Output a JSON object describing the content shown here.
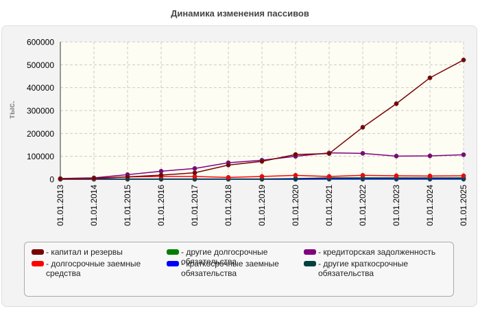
{
  "chart_data": {
    "type": "line",
    "title": "Динамика изменения пассивов",
    "ylabel": "тыс.",
    "xlabel": "",
    "ylim": [
      0,
      600000
    ],
    "yticks": [
      0,
      100000,
      200000,
      300000,
      400000,
      500000,
      600000
    ],
    "grid": true,
    "legend_position": "bottom",
    "categories": [
      "01.01.2013",
      "01.01.2014",
      "01.01.2015",
      "01.01.2016",
      "01.01.2017",
      "01.01.2018",
      "01.01.2019",
      "01.01.2020",
      "01.01.2021",
      "01.01.2022",
      "01.01.2023",
      "01.01.2024",
      "01.01.2025"
    ],
    "series": [
      {
        "name": "капитал и резервы",
        "color": "#7a0000",
        "values": [
          2000,
          4000,
          10000,
          18000,
          28000,
          62000,
          78000,
          108000,
          112000,
          227000,
          330000,
          443000,
          521000
        ]
      },
      {
        "name": "долгосрочные заемные средства",
        "color": "#ff0000",
        "values": [
          1000,
          3000,
          10000,
          12000,
          12000,
          8000,
          12000,
          17000,
          12000,
          17000,
          15000,
          14000,
          15000
        ]
      },
      {
        "name": "другие долгосрочные обязательства",
        "color": "#008000",
        "values": [
          0,
          0,
          0,
          0,
          0,
          0,
          0,
          0,
          0,
          0,
          0,
          0,
          0
        ]
      },
      {
        "name": "краткосрочные заемные обязательства",
        "color": "#0000ff",
        "values": [
          0,
          0,
          0,
          0,
          0,
          0,
          0,
          0,
          2000,
          2000,
          2000,
          2000,
          2000
        ]
      },
      {
        "name": "кредиторская задолженность",
        "color": "#800080",
        "values": [
          3000,
          6000,
          20000,
          35000,
          47000,
          72000,
          83000,
          100000,
          115000,
          113000,
          101000,
          102000,
          107000
        ]
      },
      {
        "name": "другие краткосрочные обязательства",
        "color": "#004040",
        "values": [
          500,
          1000,
          1000,
          1000,
          1000,
          1000,
          1000,
          3000,
          6000,
          6000,
          6000,
          6000,
          6000
        ]
      }
    ]
  }
}
